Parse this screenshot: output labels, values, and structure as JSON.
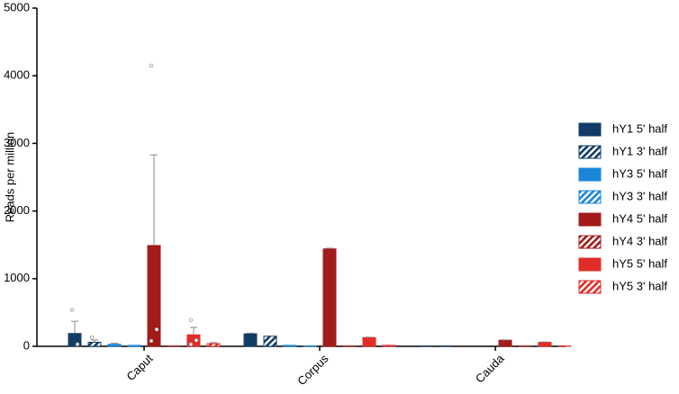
{
  "chart_data": {
    "type": "bar",
    "y_label": "Reads per million",
    "categories": [
      "Caput",
      "Corpus",
      "Cauda"
    ],
    "ylim": [
      0,
      5000
    ],
    "yticks": [
      0,
      1000,
      2000,
      3000,
      4000,
      5000
    ],
    "grid": false,
    "legend": "right",
    "series": [
      {
        "name": "hY1 5' half",
        "color": "#123c66",
        "hatch": false,
        "values": [
          190,
          185,
          5
        ],
        "errors": [
          180,
          10,
          0
        ],
        "points": [
          [
            540,
            30
          ],
          [],
          []
        ]
      },
      {
        "name": "hY1 3' half",
        "color": "#123c66",
        "hatch": true,
        "values": [
          60,
          150,
          5
        ],
        "errors": [
          35,
          5,
          0
        ],
        "points": [
          [
            130
          ],
          [],
          []
        ]
      },
      {
        "name": "hY3 5' half",
        "color": "#1a86d8",
        "hatch": false,
        "values": [
          30,
          15,
          0
        ],
        "errors": [
          15,
          0,
          0
        ],
        "points": [
          [],
          [],
          []
        ]
      },
      {
        "name": "hY3 3' half",
        "color": "#1a86d8",
        "hatch": true,
        "values": [
          15,
          5,
          0
        ],
        "errors": [
          0,
          0,
          0
        ],
        "points": [
          [],
          [],
          []
        ]
      },
      {
        "name": "hY4 5' half",
        "color": "#a11b1b",
        "hatch": false,
        "values": [
          1490,
          1440,
          90
        ],
        "errors": [
          1340,
          10,
          5
        ],
        "points": [
          [
            4150,
            250,
            80
          ],
          [],
          []
        ]
      },
      {
        "name": "hY4 3' half",
        "color": "#a11b1b",
        "hatch": true,
        "values": [
          5,
          5,
          5
        ],
        "errors": [
          0,
          0,
          0
        ],
        "points": [
          [],
          [],
          []
        ]
      },
      {
        "name": "hY5 5' half",
        "color": "#e12d28",
        "hatch": false,
        "values": [
          170,
          130,
          60
        ],
        "errors": [
          110,
          5,
          5
        ],
        "points": [
          [
            390,
            90,
            30
          ],
          [],
          []
        ]
      },
      {
        "name": "hY5 3' half",
        "color": "#e12d28",
        "hatch": true,
        "values": [
          40,
          15,
          5
        ],
        "errors": [
          15,
          0,
          0
        ],
        "points": [
          [],
          [],
          []
        ]
      }
    ]
  }
}
